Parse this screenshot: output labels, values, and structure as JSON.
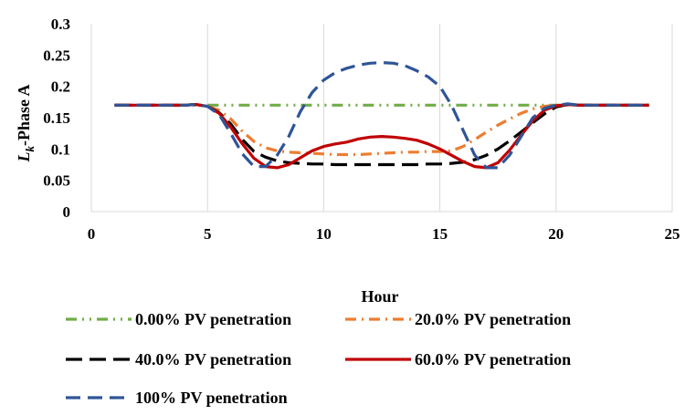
{
  "chart_data": {
    "type": "line",
    "xlabel": "Hour",
    "ylabel_main": "L",
    "ylabel_sub": "k",
    "ylabel_rest": "-Phase A",
    "xlim": [
      0,
      25
    ],
    "ylim": [
      0,
      0.3
    ],
    "x_ticks": [
      0,
      5,
      10,
      15,
      20,
      25
    ],
    "y_ticks": [
      0,
      0.05,
      0.1,
      0.15,
      0.2,
      0.25,
      0.3
    ],
    "y_tick_labels": [
      "0",
      "0.05",
      "0.1",
      "0.15",
      "0.2",
      "0.25",
      "0.3"
    ],
    "grid": "vertical",
    "legend_position": "bottom",
    "x": [
      1,
      2,
      3,
      4,
      4.5,
      5,
      5.5,
      6,
      6.5,
      7,
      7.5,
      8,
      8.5,
      9,
      9.5,
      10,
      10.5,
      11,
      11.5,
      12,
      12.5,
      13,
      13.5,
      14,
      14.5,
      15,
      15.5,
      16,
      16.5,
      17,
      17.5,
      18,
      18.5,
      19,
      19.5,
      20,
      20.5,
      21,
      22,
      23,
      24
    ],
    "series": [
      {
        "name": "0.00% PV penetration",
        "color": "#70ad47",
        "dash": "12,6,2,6,2,6",
        "values": [
          0.17,
          0.17,
          0.17,
          0.17,
          0.17,
          0.17,
          0.17,
          0.17,
          0.17,
          0.17,
          0.17,
          0.17,
          0.17,
          0.17,
          0.17,
          0.17,
          0.17,
          0.17,
          0.17,
          0.17,
          0.17,
          0.17,
          0.17,
          0.17,
          0.17,
          0.17,
          0.17,
          0.17,
          0.17,
          0.17,
          0.17,
          0.17,
          0.17,
          0.17,
          0.17,
          0.17,
          0.17,
          0.17,
          0.17,
          0.17,
          0.17
        ]
      },
      {
        "name": "20.0% PV penetration",
        "color": "#ed7d31",
        "dash": "12,6,2,6",
        "values": [
          0.17,
          0.17,
          0.17,
          0.17,
          0.171,
          0.168,
          0.162,
          0.148,
          0.128,
          0.112,
          0.102,
          0.097,
          0.095,
          0.094,
          0.093,
          0.092,
          0.091,
          0.091,
          0.091,
          0.092,
          0.093,
          0.094,
          0.095,
          0.095,
          0.096,
          0.096,
          0.097,
          0.104,
          0.115,
          0.127,
          0.138,
          0.148,
          0.157,
          0.164,
          0.168,
          0.17,
          0.171,
          0.17,
          0.17,
          0.17,
          0.17
        ]
      },
      {
        "name": "40.0% PV penetration",
        "color": "#000000",
        "dash": "18,8",
        "values": [
          0.17,
          0.17,
          0.17,
          0.17,
          0.171,
          0.168,
          0.158,
          0.14,
          0.115,
          0.096,
          0.087,
          0.081,
          0.078,
          0.077,
          0.076,
          0.076,
          0.075,
          0.075,
          0.075,
          0.075,
          0.075,
          0.075,
          0.075,
          0.075,
          0.076,
          0.076,
          0.077,
          0.079,
          0.083,
          0.09,
          0.1,
          0.113,
          0.127,
          0.142,
          0.156,
          0.167,
          0.171,
          0.17,
          0.17,
          0.17,
          0.17
        ]
      },
      {
        "name": "60.0% PV penetration",
        "color": "#c00000",
        "dash": "",
        "values": [
          0.17,
          0.17,
          0.17,
          0.17,
          0.171,
          0.168,
          0.157,
          0.135,
          0.108,
          0.085,
          0.072,
          0.07,
          0.075,
          0.086,
          0.097,
          0.104,
          0.108,
          0.111,
          0.116,
          0.119,
          0.12,
          0.119,
          0.117,
          0.114,
          0.108,
          0.1,
          0.09,
          0.08,
          0.072,
          0.07,
          0.078,
          0.098,
          0.122,
          0.145,
          0.162,
          0.169,
          0.171,
          0.17,
          0.17,
          0.17,
          0.17
        ]
      },
      {
        "name": "100%  PV penetration",
        "color": "#2f5597",
        "dash": "16,8",
        "values": [
          0.17,
          0.17,
          0.17,
          0.17,
          0.171,
          0.168,
          0.155,
          0.125,
          0.092,
          0.072,
          0.072,
          0.09,
          0.12,
          0.16,
          0.19,
          0.21,
          0.222,
          0.229,
          0.234,
          0.237,
          0.238,
          0.237,
          0.233,
          0.225,
          0.215,
          0.2,
          0.17,
          0.13,
          0.09,
          0.07,
          0.07,
          0.09,
          0.12,
          0.15,
          0.165,
          0.17,
          0.172,
          0.17,
          0.17,
          0.17,
          0.17
        ]
      }
    ]
  }
}
